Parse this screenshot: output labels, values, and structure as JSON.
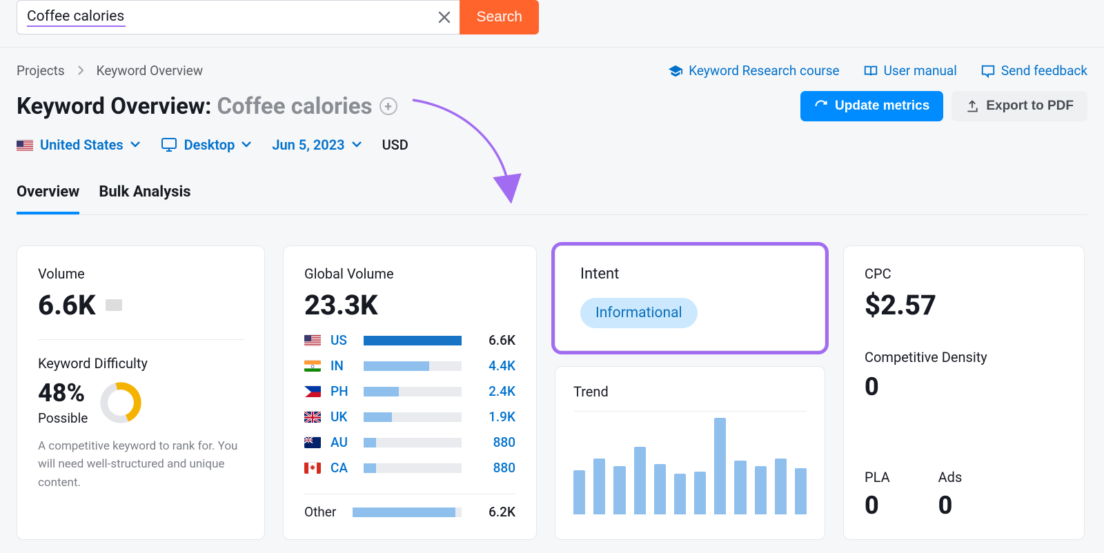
{
  "search": {
    "value": "Coffee calories",
    "button": "Search"
  },
  "breadcrumb": {
    "root": "Projects",
    "current": "Keyword Overview"
  },
  "header_links": {
    "course": "Keyword Research course",
    "manual": "User manual",
    "feedback": "Send feedback"
  },
  "title": {
    "prefix": "Keyword Overview:",
    "keyword": "Coffee calories"
  },
  "actions": {
    "update": "Update metrics",
    "export": "Export to PDF"
  },
  "filters": {
    "country": "United States",
    "device": "Desktop",
    "date": "Jun 5, 2023",
    "currency": "USD"
  },
  "tabs": {
    "overview": "Overview",
    "bulk": "Bulk Analysis"
  },
  "volume": {
    "label": "Volume",
    "value": "6.6K",
    "flag": "us"
  },
  "kd": {
    "label": "Keyword Difficulty",
    "value": "48%",
    "sublabel": "Possible",
    "help": "A competitive keyword to rank for. You will need well-structured and unique content.",
    "donut_pct": 48,
    "donut_color": "#f5b301",
    "donut_bg": "#e2e4e8"
  },
  "global_volume": {
    "label": "Global Volume",
    "value": "23.3K",
    "max": 6600,
    "rows": [
      {
        "cc": "US",
        "flag": "us",
        "value": "6.6K",
        "pct": 100,
        "dark": true,
        "value_dark": true
      },
      {
        "cc": "IN",
        "flag": "in",
        "value": "4.4K",
        "pct": 67
      },
      {
        "cc": "PH",
        "flag": "ph",
        "value": "2.4K",
        "pct": 36
      },
      {
        "cc": "UK",
        "flag": "uk",
        "value": "1.9K",
        "pct": 29
      },
      {
        "cc": "AU",
        "flag": "au",
        "value": "880",
        "pct": 13
      },
      {
        "cc": "CA",
        "flag": "ca",
        "value": "880",
        "pct": 13
      }
    ],
    "other": {
      "label": "Other",
      "value": "6.2K",
      "pct": 94,
      "dark": false,
      "value_dark": true,
      "bar_color": "#8fc0ed"
    }
  },
  "intent": {
    "label": "Intent",
    "value": "Informational",
    "pill_bg": "#cbe8ff",
    "pill_fg": "#0a6fb8"
  },
  "trend": {
    "label": "Trend",
    "bars_pct": [
      46,
      58,
      50,
      70,
      52,
      42,
      44,
      100,
      56,
      50,
      58,
      48
    ],
    "bar_color": "#8fc0ed"
  },
  "cpc": {
    "label": "CPC",
    "value": "$2.57",
    "cd_label": "Competitive Density",
    "cd_value": "0",
    "pla_label": "PLA",
    "pla_value": "0",
    "ads_label": "Ads",
    "ads_value": "0"
  },
  "colors": {
    "accent": "#008cff",
    "link": "#0071cd",
    "search_btn": "#ff642d",
    "highlight": "#a26cf2"
  }
}
